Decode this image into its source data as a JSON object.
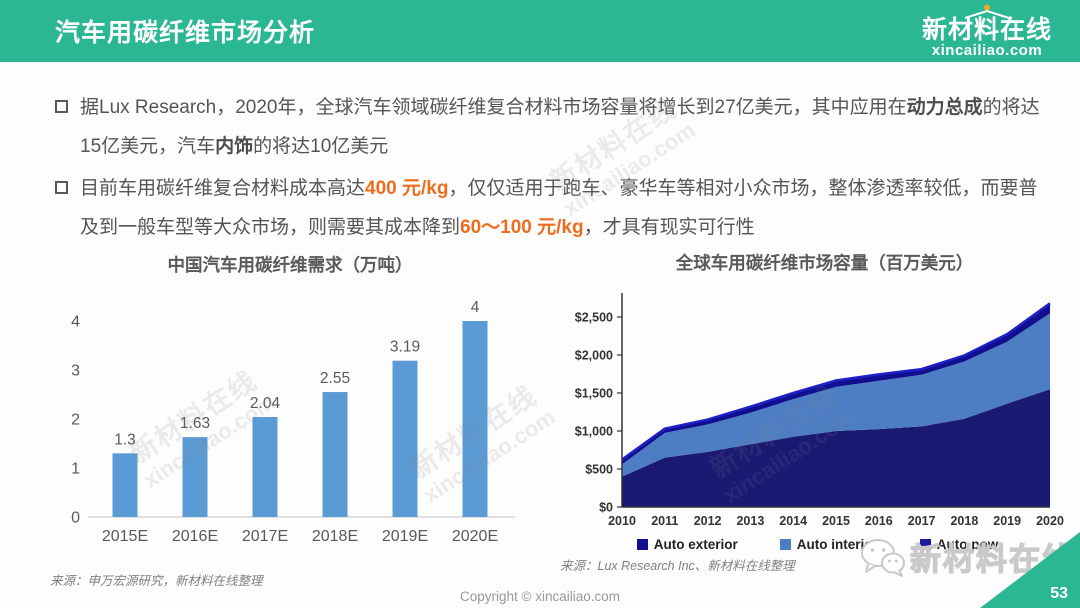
{
  "header": {
    "title": "汽车用碳纤维市场分析",
    "logo_name": "新材料在线",
    "logo_domain": "xincailiao.com"
  },
  "bullets": [
    {
      "segments": [
        {
          "t": "据Lux Research，2020年，全球汽车领域碳纤维复合材料市场容量将增长到27亿美元，其中应用在",
          "style": "normal"
        },
        {
          "t": "动力总成",
          "style": "bold"
        },
        {
          "t": "的将达15亿美元，汽车",
          "style": "normal"
        },
        {
          "t": "内饰",
          "style": "bold"
        },
        {
          "t": "的将达10亿美元",
          "style": "normal"
        }
      ]
    },
    {
      "segments": [
        {
          "t": "目前车用碳纤维复合材料成本高达",
          "style": "normal"
        },
        {
          "t": "400 元/kg",
          "style": "orange"
        },
        {
          "t": "，仅仅适用于跑车、豪华车等相对小众市场，整体渗透率较低，而要普及到一般车型等大众市场，则需要其成本降到",
          "style": "normal"
        },
        {
          "t": "60～100 元/kg",
          "style": "orange"
        },
        {
          "t": "，才具有现实可行性",
          "style": "normal"
        }
      ]
    }
  ],
  "chart_data": [
    {
      "type": "bar",
      "title": "中国汽车用碳纤维需求（万吨）",
      "categories": [
        "2015E",
        "2016E",
        "2017E",
        "2018E",
        "2019E",
        "2020E"
      ],
      "values": [
        1.3,
        1.63,
        2.04,
        2.55,
        3.19,
        4
      ],
      "value_labels": [
        "1.3",
        "1.63",
        "2.04",
        "2.55",
        "3.19",
        "4"
      ],
      "ylim": [
        0,
        4
      ],
      "yticks": [
        0,
        1,
        2,
        3,
        4
      ],
      "bar_color": "#5B9BD5",
      "grid": false,
      "source": "来源：申万宏源研究，新材料在线整理"
    },
    {
      "type": "area",
      "title": "全球车用碳纤维市场容量（百万美元）",
      "stacked": true,
      "x": [
        2010,
        2011,
        2012,
        2013,
        2014,
        2015,
        2016,
        2017,
        2018,
        2019,
        2020
      ],
      "series": [
        {
          "name": "Auto powertrain",
          "color": "#1A1A72",
          "values": [
            400,
            650,
            725,
            825,
            925,
            1000,
            1025,
            1060,
            1160,
            1360,
            1550
          ]
        },
        {
          "name": "Auto interior",
          "color": "#4D7EC3",
          "values": [
            160,
            325,
            360,
            415,
            495,
            580,
            635,
            680,
            755,
            815,
            1000
          ]
        },
        {
          "name": "Auto exterior",
          "color": "#0F0F8F",
          "top_stroke": "#2020C8",
          "values": [
            65,
            55,
            65,
            80,
            80,
            85,
            85,
            75,
            80,
            100,
            130
          ]
        }
      ],
      "ylim": [
        0,
        2500
      ],
      "ytick_values": [
        0,
        500,
        1000,
        1500,
        2000,
        2500
      ],
      "ytick_labels": [
        "$0",
        "$500",
        "$1,000",
        "$1,500",
        "$2,000",
        "$2,500"
      ],
      "legend_position": "bottom",
      "legend_items": [
        {
          "label": "Auto exterior",
          "color": "#0F0F8F"
        },
        {
          "label": "Auto interior",
          "color": "#4D7EC3"
        },
        {
          "label": "Auto pow",
          "color": "#1A1A9E"
        }
      ],
      "grid": false,
      "source": "来源：Lux Research Inc、新材料在线整理"
    }
  ],
  "watermark": {
    "line1": "新材料在线",
    "line2": "xincailiao.com"
  },
  "footer": {
    "copyright": "Copyright © xincailiao.com",
    "brand": "新材料在线",
    "page": "53"
  }
}
